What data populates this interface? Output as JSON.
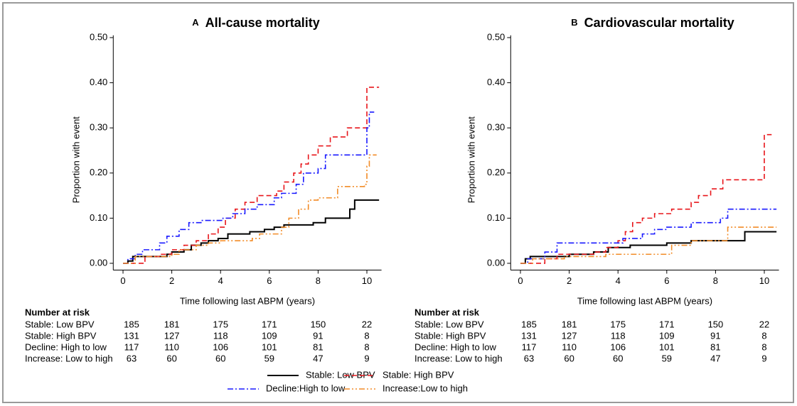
{
  "chart_data": [
    {
      "type": "step",
      "panel_label": "A",
      "title": "All-cause mortality",
      "x_label": "Time following last ABPM (years)",
      "y_label": "Proportion with event",
      "xlim": [
        -0.4,
        10.6
      ],
      "ylim": [
        -0.015,
        0.505
      ],
      "xticks": [
        0,
        2,
        4,
        6,
        8,
        10
      ],
      "yticks": [
        {
          "value": 0,
          "label": "0.00"
        },
        {
          "value": 0.1,
          "label": "0.10"
        },
        {
          "value": 0.2,
          "label": "0.20"
        },
        {
          "value": 0.3,
          "label": "0.30"
        },
        {
          "value": 0.4,
          "label": "0.40"
        },
        {
          "value": 0.5,
          "label": "0.50"
        }
      ],
      "series": [
        {
          "name": "Stable: Low BPV",
          "color": "#000000",
          "line_style": "solid",
          "x": [
            0,
            0.2,
            0.4,
            1.8,
            2.0,
            2.5,
            2.8,
            3.2,
            3.5,
            3.9,
            4.3,
            5.2,
            5.8,
            6.2,
            6.6,
            7.8,
            8.3,
            9.3,
            9.5,
            10.5
          ],
          "values": [
            0,
            0.005,
            0.015,
            0.02,
            0.025,
            0.03,
            0.04,
            0.045,
            0.05,
            0.055,
            0.065,
            0.07,
            0.075,
            0.08,
            0.085,
            0.09,
            0.1,
            0.12,
            0.14,
            0.14
          ]
        },
        {
          "name": "Stable: High BPV",
          "color": "#e8161b",
          "line_style": "dashed",
          "x": [
            0,
            0.9,
            1.5,
            2.0,
            2.5,
            3.0,
            3.5,
            3.9,
            4.2,
            4.6,
            5.0,
            5.5,
            6.3,
            6.6,
            7.0,
            7.3,
            7.6,
            8.0,
            8.5,
            9.2,
            10.0,
            10.5
          ],
          "values": [
            0,
            0.015,
            0.02,
            0.03,
            0.04,
            0.05,
            0.065,
            0.08,
            0.1,
            0.12,
            0.135,
            0.15,
            0.16,
            0.18,
            0.2,
            0.22,
            0.24,
            0.26,
            0.28,
            0.3,
            0.39,
            0.39
          ]
        },
        {
          "name": "Decline:High to low",
          "color": "#1a1aff",
          "line_style": "dashdot",
          "x": [
            0,
            0.2,
            0.5,
            0.8,
            1.5,
            1.8,
            2.3,
            2.7,
            3.2,
            4.1,
            4.5,
            5.0,
            5.5,
            6.2,
            6.5,
            7.1,
            7.4,
            8.0,
            8.3,
            9.8,
            10.0,
            10.1,
            10.3
          ],
          "values": [
            0,
            0.01,
            0.02,
            0.03,
            0.045,
            0.06,
            0.075,
            0.09,
            0.095,
            0.1,
            0.11,
            0.12,
            0.13,
            0.145,
            0.155,
            0.175,
            0.2,
            0.21,
            0.24,
            0.24,
            0.3,
            0.335,
            0.335
          ]
        },
        {
          "name": "Increase:Low to high",
          "color": "#f28c28",
          "line_style": "dashdotdot",
          "x": [
            0,
            0.5,
            2.0,
            2.3,
            3.0,
            3.5,
            4.0,
            5.3,
            5.6,
            6.5,
            6.8,
            7.2,
            7.6,
            8.0,
            8.8,
            9.9,
            10.0,
            10.1,
            10.4
          ],
          "values": [
            0,
            0.015,
            0.02,
            0.03,
            0.04,
            0.045,
            0.05,
            0.055,
            0.065,
            0.08,
            0.1,
            0.12,
            0.14,
            0.145,
            0.17,
            0.175,
            0.215,
            0.24,
            0.24
          ]
        }
      ],
      "risk_table": {
        "title": "Number at risk",
        "rows": [
          {
            "label": "Stable: Low BPV",
            "values": [
              185,
              181,
              175,
              171,
              150,
              22
            ]
          },
          {
            "label": "Stable: High BPV",
            "values": [
              131,
              127,
              118,
              109,
              91,
              8
            ]
          },
          {
            "label": "Decline: High to low",
            "values": [
              117,
              110,
              106,
              101,
              81,
              8
            ]
          },
          {
            "label": "Increase: Low to high",
            "values": [
              63,
              60,
              60,
              59,
              47,
              9
            ]
          }
        ]
      }
    },
    {
      "type": "step",
      "panel_label": "B",
      "title": "Cardiovascular mortality",
      "x_label": "Time following last ABPM (years)",
      "y_label": "Proportion with event",
      "xlim": [
        -0.4,
        10.6
      ],
      "ylim": [
        -0.015,
        0.505
      ],
      "xticks": [
        0,
        2,
        4,
        6,
        8,
        10
      ],
      "yticks": [
        {
          "value": 0,
          "label": "0.00"
        },
        {
          "value": 0.1,
          "label": "0.10"
        },
        {
          "value": 0.2,
          "label": "0.20"
        },
        {
          "value": 0.3,
          "label": "0.30"
        },
        {
          "value": 0.4,
          "label": "0.40"
        },
        {
          "value": 0.5,
          "label": "0.50"
        }
      ],
      "series": [
        {
          "color": "#000000",
          "line_style": "solid",
          "x": [
            0,
            0.2,
            0.4,
            2.0,
            3.0,
            3.6,
            4.5,
            6.0,
            7.0,
            9.2,
            10.5
          ],
          "values": [
            0,
            0.01,
            0.015,
            0.02,
            0.025,
            0.035,
            0.04,
            0.045,
            0.05,
            0.07,
            0.07
          ]
        },
        {
          "color": "#e8161b",
          "line_style": "dashed",
          "x": [
            0,
            1.0,
            1.5,
            3.0,
            3.5,
            4.0,
            4.3,
            4.6,
            5.0,
            5.5,
            6.2,
            7.0,
            7.3,
            7.8,
            8.3,
            10.0,
            10.3
          ],
          "values": [
            0,
            0.01,
            0.02,
            0.025,
            0.035,
            0.05,
            0.07,
            0.09,
            0.1,
            0.11,
            0.12,
            0.135,
            0.15,
            0.165,
            0.185,
            0.285,
            0.285
          ]
        },
        {
          "color": "#1a1aff",
          "line_style": "dashdot",
          "x": [
            0,
            0.3,
            1.0,
            1.5,
            4.2,
            5.0,
            5.5,
            6.0,
            7.0,
            8.2,
            8.5,
            10.5
          ],
          "values": [
            0,
            0.01,
            0.025,
            0.045,
            0.055,
            0.065,
            0.075,
            0.08,
            0.09,
            0.1,
            0.12,
            0.12
          ]
        },
        {
          "color": "#f28c28",
          "line_style": "dashdotdot",
          "x": [
            0,
            0.5,
            1.8,
            3.5,
            6.0,
            6.2,
            7.0,
            8.5,
            10.5
          ],
          "values": [
            0,
            0.01,
            0.015,
            0.02,
            0.02,
            0.04,
            0.05,
            0.08,
            0.08
          ]
        }
      ],
      "risk_table": {
        "title": "Number at risk",
        "rows": [
          {
            "label": "Stable: Low BPV",
            "values": [
              185,
              181,
              175,
              171,
              150,
              22
            ]
          },
          {
            "label": "Stable: High BPV",
            "values": [
              131,
              127,
              118,
              109,
              91,
              8
            ]
          },
          {
            "label": "Decline: High to low",
            "values": [
              117,
              110,
              106,
              101,
              81,
              8
            ]
          },
          {
            "label": "Increase: Low to high",
            "values": [
              63,
              60,
              60,
              59,
              47,
              9
            ]
          }
        ]
      }
    }
  ]
}
